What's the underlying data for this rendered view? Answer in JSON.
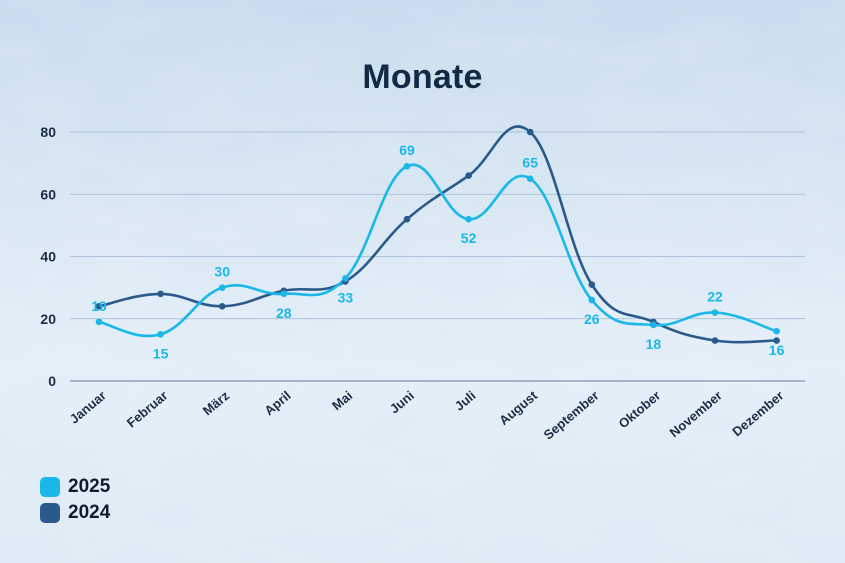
{
  "chart_data": {
    "type": "line",
    "title": "Monate",
    "xlabel": "",
    "ylabel": "",
    "ylim": [
      0,
      80
    ],
    "yticks": [
      0,
      20,
      40,
      60,
      80
    ],
    "grid": true,
    "legend_position": "bottom-left",
    "categories": [
      "Januar",
      "Februar",
      "März",
      "April",
      "Mai",
      "Juni",
      "Juli",
      "August",
      "September",
      "Oktober",
      "November",
      "Dezember"
    ],
    "series": [
      {
        "name": "2025",
        "color": "#1ab8e8",
        "values": [
          19,
          15,
          30,
          28,
          33,
          69,
          52,
          65,
          26,
          18,
          22,
          16
        ],
        "labels_shown": true
      },
      {
        "name": "2024",
        "color": "#2a5a8c",
        "values": [
          24,
          28,
          24,
          29,
          32,
          52,
          66,
          80,
          31,
          19,
          13,
          13
        ],
        "labels_shown": false
      }
    ]
  }
}
